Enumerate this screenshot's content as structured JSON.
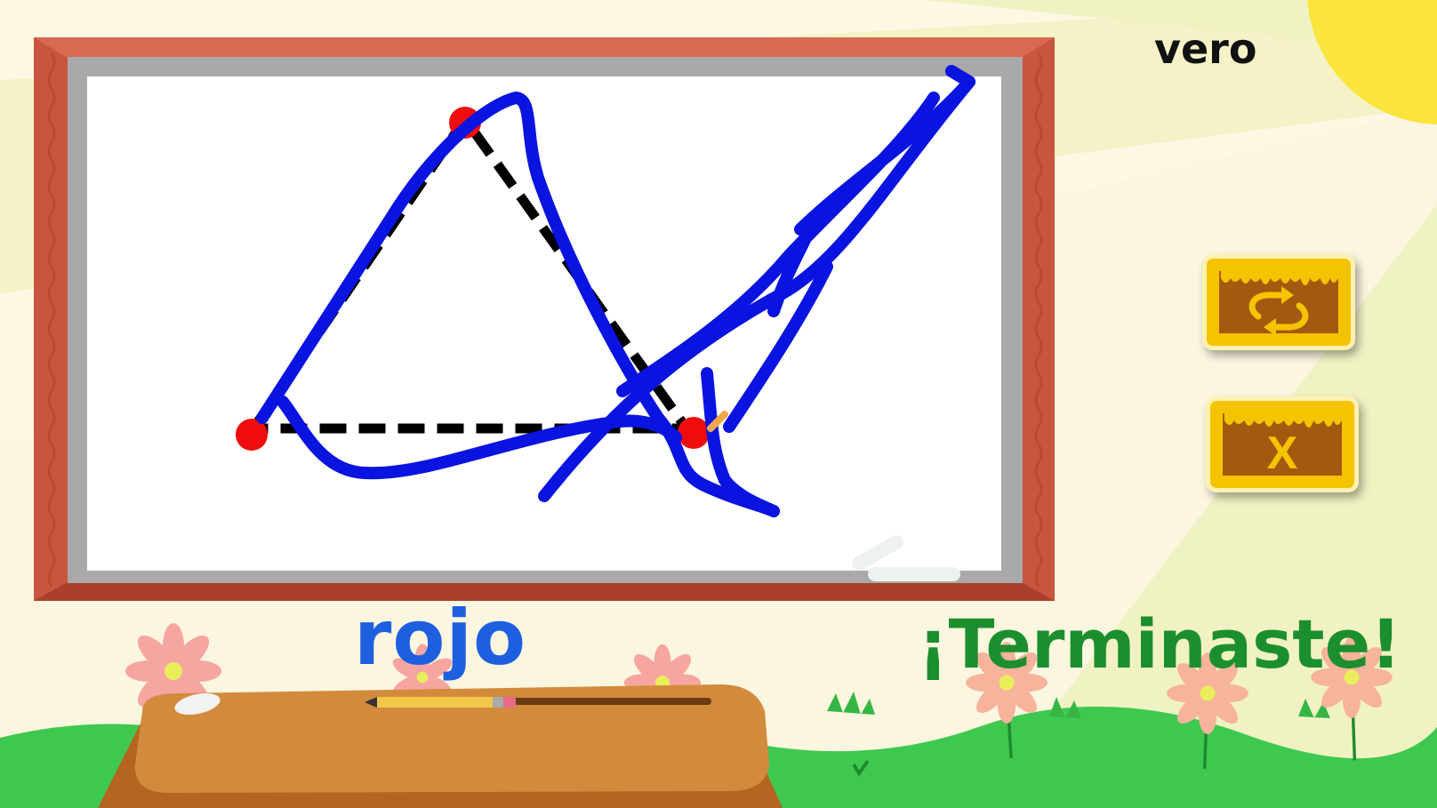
{
  "player": {
    "name": "vero"
  },
  "instruction": {
    "color_word": "rojo"
  },
  "status": {
    "message": "¡Terminaste!"
  },
  "buttons": {
    "restart": {
      "icon": "restart-arrows-icon"
    },
    "close": {
      "icon": "close-icon",
      "glyph": "X"
    }
  },
  "colors": {
    "ink": "#0a14e0",
    "color_word": "#1e5fe0",
    "message": "#1b8f2e",
    "button_face": "#f6c300",
    "button_wood": "#a35a10",
    "frame": "#c9553e",
    "grass": "#3fc84f"
  }
}
